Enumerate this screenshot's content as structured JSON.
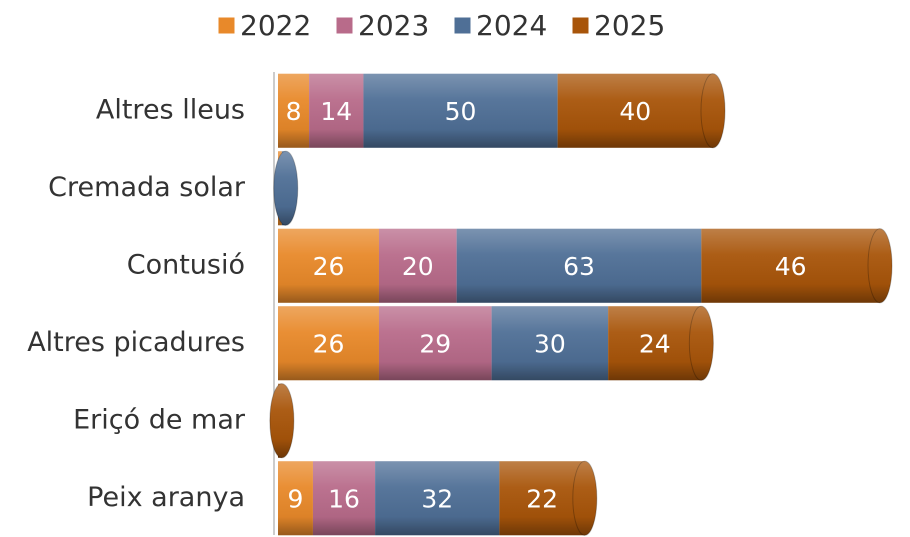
{
  "chart_data": {
    "type": "bar",
    "orientation": "horizontal",
    "stacked": true,
    "categories": [
      "Altres lleus",
      "Cremada solar",
      "Contusió",
      "Altres picadures",
      "Eriçó de mar",
      "Peix aranya"
    ],
    "series": [
      {
        "name": "2022",
        "color": "#e8892a",
        "values": [
          8,
          1,
          26,
          26,
          null,
          9
        ]
      },
      {
        "name": "2023",
        "color": "#b86b8a",
        "values": [
          14,
          null,
          20,
          29,
          null,
          16
        ]
      },
      {
        "name": "2024",
        "color": "#4f6f96",
        "values": [
          50,
          1,
          63,
          30,
          null,
          32
        ]
      },
      {
        "name": "2025",
        "color": "#a8550a",
        "values": [
          40,
          null,
          46,
          24,
          1,
          22
        ]
      }
    ],
    "legend": "top"
  }
}
